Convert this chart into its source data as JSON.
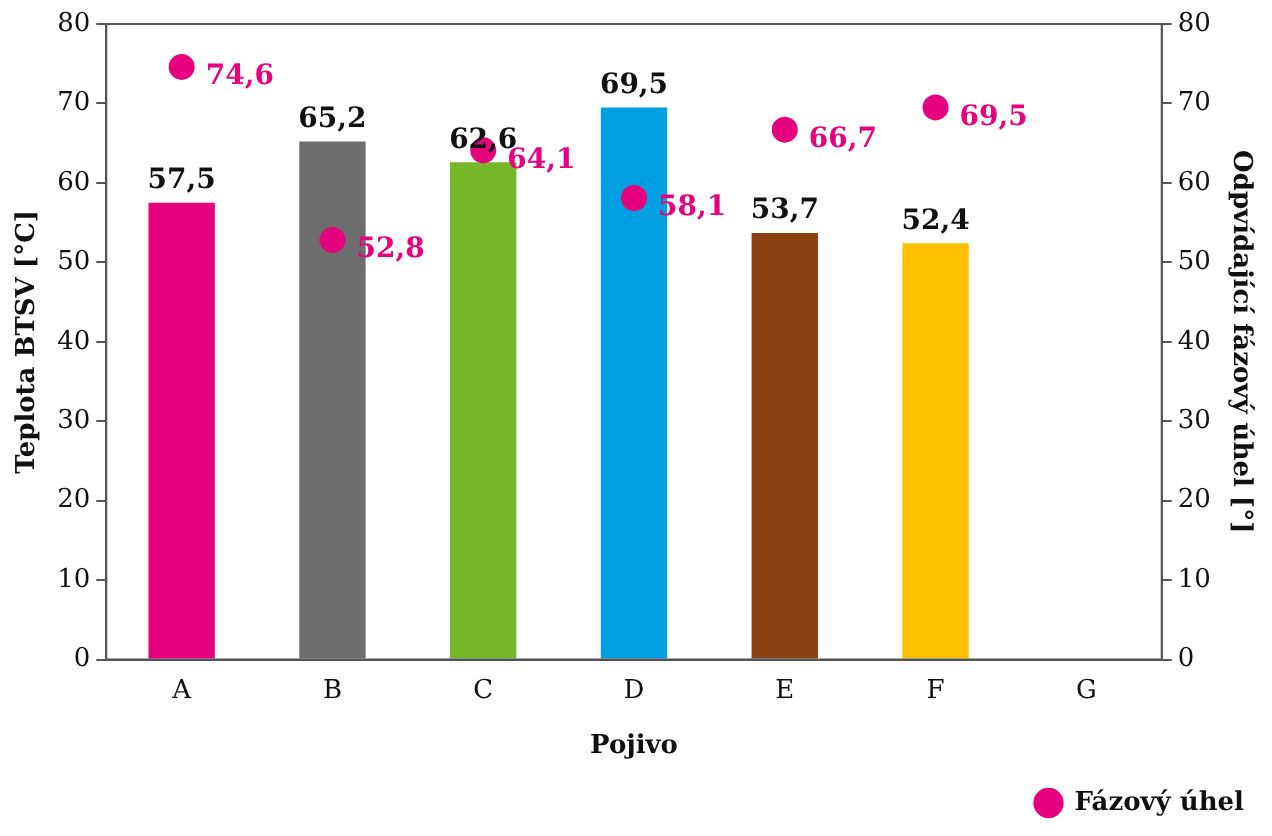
{
  "chart_data": {
    "type": "bar",
    "xlabel": "Pojivo",
    "ylabel": "Teplota BTSV [°C]",
    "y2label": "Odpvídající fázový úhel [°]",
    "categories": [
      "A",
      "B",
      "C",
      "D",
      "E",
      "F",
      "G"
    ],
    "series": [
      {
        "type": "bar",
        "colors": [
          "#e5007e",
          "#6d6d6d",
          "#76b82a",
          "#009fe3",
          "#8b4010",
          "#ffc000",
          null
        ],
        "values": [
          57.5,
          65.2,
          62.6,
          69.5,
          53.7,
          52.4,
          null
        ],
        "value_labels": [
          "57,5",
          "65,2",
          "62,6",
          "69,5",
          "53,7",
          "52,4",
          null
        ]
      },
      {
        "type": "scatter",
        "name": "Fázový úhel",
        "axis": "y2",
        "color": "#e5007e",
        "marker": "circle",
        "values": [
          74.6,
          52.8,
          64.1,
          58.1,
          66.7,
          69.5,
          null
        ],
        "value_labels": [
          "74,6",
          "52,8",
          "64,1",
          "58,1",
          "66,7",
          "69,5",
          null
        ]
      }
    ],
    "ylim": [
      0,
      80
    ],
    "yticks": [
      0,
      10,
      20,
      30,
      40,
      50,
      60,
      70,
      80
    ],
    "y2lim": [
      0,
      80
    ],
    "y2ticks": [
      0,
      10,
      20,
      30,
      40,
      50,
      60,
      70,
      80
    ],
    "grid": false,
    "legend": "bottom right"
  }
}
